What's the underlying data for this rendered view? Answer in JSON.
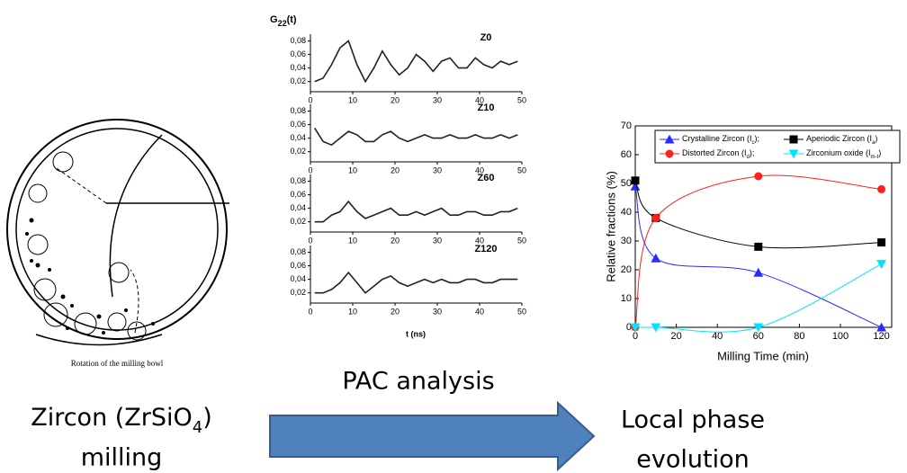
{
  "left": {
    "caption": "Rotation of the milling bowl",
    "label": [
      "Zircon (ZrSiO",
      "4",
      ")"
    ],
    "label_line2": "milling"
  },
  "middle": {
    "caption": "PAC analysis",
    "ylabel": [
      "G",
      "22",
      "(t)"
    ],
    "xlabel": "t (ns)",
    "xlim": [
      0,
      50
    ],
    "xticks": [
      0,
      10,
      20,
      30,
      40,
      50
    ],
    "ylim": [
      0.005,
      0.09
    ],
    "yticks": [
      {
        "value": 0.02,
        "label": "0,02"
      },
      {
        "value": 0.04,
        "label": "0,04"
      },
      {
        "value": 0.06,
        "label": "0,06"
      },
      {
        "value": 0.08,
        "label": "0,08"
      }
    ],
    "x": [
      1,
      3,
      5,
      7,
      9,
      11,
      13,
      15,
      17,
      19,
      21,
      23,
      25,
      27,
      29,
      31,
      33,
      35,
      37,
      39,
      41,
      43,
      45,
      47,
      49
    ],
    "panels": [
      {
        "label": "Z0",
        "values": [
          0.02,
          0.025,
          0.045,
          0.07,
          0.08,
          0.045,
          0.02,
          0.04,
          0.065,
          0.045,
          0.03,
          0.04,
          0.06,
          0.05,
          0.035,
          0.05,
          0.055,
          0.04,
          0.04,
          0.055,
          0.045,
          0.04,
          0.05,
          0.045,
          0.05
        ]
      },
      {
        "label": "Z10",
        "values": [
          0.055,
          0.035,
          0.03,
          0.04,
          0.05,
          0.045,
          0.035,
          0.035,
          0.045,
          0.05,
          0.04,
          0.035,
          0.04,
          0.045,
          0.04,
          0.04,
          0.045,
          0.04,
          0.04,
          0.045,
          0.04,
          0.04,
          0.045,
          0.04,
          0.045
        ]
      },
      {
        "label": "Z60",
        "values": [
          0.02,
          0.02,
          0.03,
          0.035,
          0.05,
          0.035,
          0.025,
          0.03,
          0.035,
          0.04,
          0.03,
          0.03,
          0.035,
          0.03,
          0.035,
          0.04,
          0.03,
          0.03,
          0.035,
          0.035,
          0.03,
          0.03,
          0.035,
          0.035,
          0.04
        ]
      },
      {
        "label": "Z120",
        "values": [
          0.02,
          0.02,
          0.025,
          0.035,
          0.05,
          0.035,
          0.02,
          0.03,
          0.04,
          0.045,
          0.035,
          0.03,
          0.035,
          0.04,
          0.035,
          0.04,
          0.035,
          0.035,
          0.04,
          0.04,
          0.035,
          0.035,
          0.04,
          0.04,
          0.04
        ]
      }
    ]
  },
  "right": {
    "caption": [
      "Local phase",
      "evolution"
    ],
    "chart": {
      "type": "scatter",
      "xlabel": "Milling Time (min)",
      "ylabel": "Relative fractions (%)",
      "xlim": [
        0,
        125
      ],
      "xticks": [
        0,
        20,
        40,
        60,
        80,
        100,
        120
      ],
      "ylim": [
        0,
        70
      ],
      "yticks": [
        0,
        10,
        20,
        30,
        40,
        50,
        60,
        70
      ],
      "x": [
        0,
        10,
        60,
        120
      ],
      "series": [
        {
          "name": [
            "Crystalline Zircon (I",
            "c",
            ");"
          ],
          "color": "#2b2bff",
          "marker": "triangle",
          "values": [
            49,
            24,
            19,
            0
          ]
        },
        {
          "name": [
            "Aperiodic Zircon (I",
            "a",
            ")"
          ],
          "color": "#000000",
          "marker": "square",
          "values": [
            51,
            38,
            28,
            29.5
          ]
        },
        {
          "name": [
            "Distorted Zircon (I",
            "d",
            ");"
          ],
          "color": "#ff2020",
          "marker": "circle",
          "values": [
            0,
            38,
            52.5,
            48
          ]
        },
        {
          "name": [
            "Zirconium oxide (I",
            "m-t",
            ")"
          ],
          "color": "#00e5ff",
          "marker": "down-triangle",
          "values": [
            0,
            0,
            0,
            22
          ]
        }
      ]
    }
  }
}
